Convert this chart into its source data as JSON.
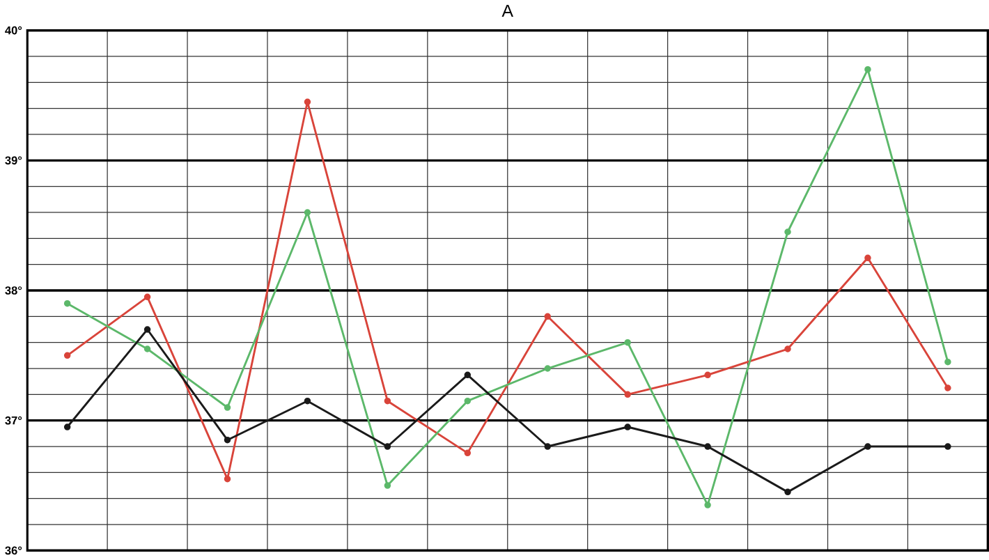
{
  "chart_data": {
    "type": "line",
    "title": "A",
    "categories": [
      null,
      null,
      null,
      null,
      null,
      null,
      null,
      null,
      null,
      null,
      null,
      null
    ],
    "series": [
      {
        "color": "#d9443a",
        "values": [
          37.5,
          37.95,
          36.55,
          39.45,
          37.15,
          36.75,
          37.8,
          37.2,
          37.35,
          37.55,
          38.25,
          37.25
        ]
      },
      {
        "color": "#5cb86a",
        "values": [
          37.9,
          37.55,
          37.1,
          38.6,
          36.5,
          37.15,
          37.4,
          37.6,
          36.35,
          38.45,
          39.7,
          37.45
        ]
      },
      {
        "color": "#1a1a1a",
        "values": [
          36.95,
          37.7,
          36.85,
          37.15,
          36.8,
          37.35,
          36.8,
          36.95,
          36.8,
          36.45,
          36.8,
          36.8
        ]
      }
    ],
    "ylim": [
      36,
      40
    ],
    "yticks": [
      {
        "value": 36,
        "label": "36°"
      },
      {
        "value": 37,
        "label": "37°"
      },
      {
        "value": 38,
        "label": "38°"
      },
      {
        "value": 39,
        "label": "39°"
      },
      {
        "value": 40,
        "label": "40°"
      }
    ],
    "grid": true,
    "marker": "circle",
    "line_style": "solid"
  }
}
